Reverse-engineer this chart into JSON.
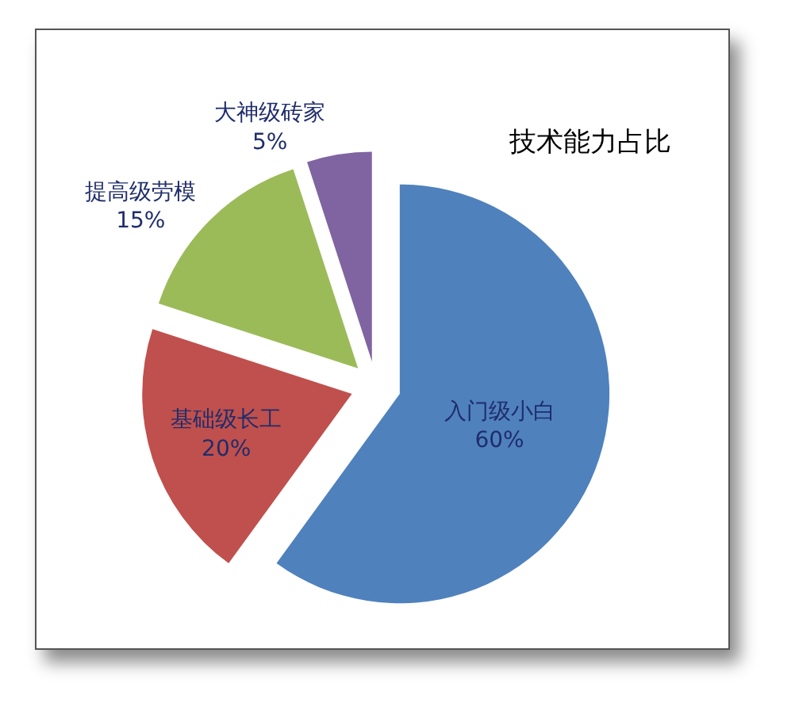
{
  "chart_data": {
    "type": "pie",
    "title": "技术能力占比",
    "categories": [
      "入门级小白",
      "基础级长工",
      "提高级劳模",
      "大神级砖家"
    ],
    "values": [
      60,
      20,
      15,
      5
    ],
    "value_labels": [
      "60%",
      "20%",
      "15%",
      "5%"
    ],
    "colors": [
      "#4f81bd",
      "#c0504d",
      "#9bbb59",
      "#8064a2"
    ],
    "legend": false
  }
}
